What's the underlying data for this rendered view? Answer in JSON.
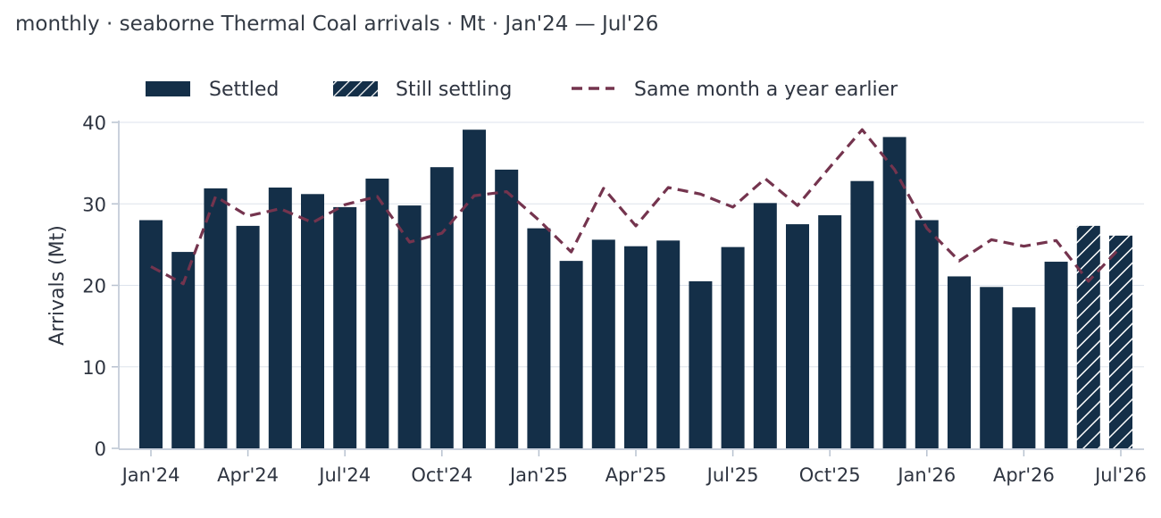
{
  "chart_data": {
    "type": "bar",
    "title": "monthly · seaborne Thermal Coal arrivals · Mt · Jan'24 — Jul'26",
    "ylabel": "Arrivals (Mt)",
    "xlabel": "",
    "ylim": [
      0,
      40
    ],
    "yticks": [
      0,
      10,
      20,
      30,
      40
    ],
    "grid": true,
    "legend_position": "top-left",
    "colors": {
      "bar": "#142f48",
      "prior_year_line": "#74344e",
      "grid": "#dde3ec",
      "axis": "#b8c2d0"
    },
    "categories": [
      "Jan'24",
      "Feb'24",
      "Mar'24",
      "Apr'24",
      "May'24",
      "Jun'24",
      "Jul'24",
      "Aug'24",
      "Sep'24",
      "Oct'24",
      "Nov'24",
      "Dec'24",
      "Jan'25",
      "Feb'25",
      "Mar'25",
      "Apr'25",
      "May'25",
      "Jun'25",
      "Jul'25",
      "Aug'25",
      "Sep'25",
      "Oct'25",
      "Nov'25",
      "Dec'25",
      "Jan'26",
      "Feb'26",
      "Mar'26",
      "Apr'26",
      "May'26",
      "Jun'26",
      "Jul'26"
    ],
    "xtick_labels": [
      "Jan'24",
      "Apr'24",
      "Jul'24",
      "Oct'24",
      "Jan'25",
      "Apr'25",
      "Jul'25",
      "Oct'25",
      "Jan'26",
      "Apr'26",
      "Jul'26"
    ],
    "xtick_positions": [
      0,
      3,
      6,
      9,
      12,
      15,
      18,
      21,
      24,
      27,
      30
    ],
    "series": [
      {
        "name": "Settled",
        "style": "solid",
        "values": [
          28.0,
          24.1,
          31.9,
          27.3,
          32.0,
          31.2,
          29.6,
          33.1,
          29.8,
          34.5,
          39.1,
          34.2,
          27.0,
          23.0,
          25.6,
          24.8,
          25.5,
          20.5,
          24.7,
          30.1,
          27.5,
          28.6,
          32.8,
          38.2,
          28.0,
          21.1,
          19.8,
          17.3,
          22.9,
          null,
          null
        ]
      },
      {
        "name": "Still settling",
        "style": "hatched",
        "values": [
          null,
          null,
          null,
          null,
          null,
          null,
          null,
          null,
          null,
          null,
          null,
          null,
          null,
          null,
          null,
          null,
          null,
          null,
          null,
          null,
          null,
          null,
          null,
          null,
          null,
          null,
          null,
          null,
          null,
          27.3,
          26.1
        ]
      },
      {
        "name": "Same month a year earlier",
        "style": "dashed-line",
        "values": [
          22.3,
          20.2,
          30.9,
          28.5,
          29.4,
          27.7,
          29.9,
          30.9,
          25.3,
          26.4,
          31.0,
          31.5,
          28.0,
          24.1,
          31.9,
          27.3,
          32.0,
          31.2,
          29.6,
          33.1,
          29.8,
          34.5,
          39.1,
          34.2,
          27.0,
          23.0,
          25.6,
          24.8,
          25.5,
          20.5,
          24.7
        ]
      }
    ]
  }
}
